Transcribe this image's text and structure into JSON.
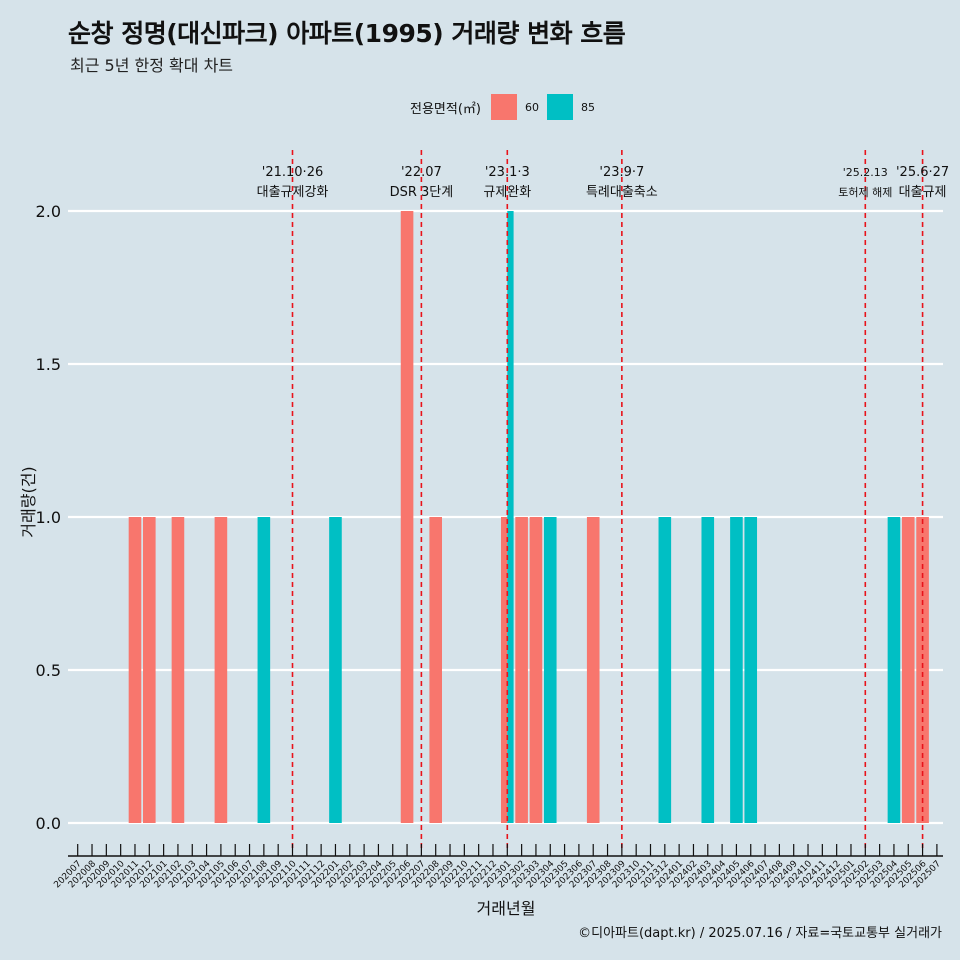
{
  "title": "순창 정명(대신파크) 아파트(1995) 거래량 변화 흐름",
  "subtitle": "최근 5년 한정 확대 차트",
  "caption": "©디아파트(dapt.kr) / 2025.07.16 / 자료=국토교통부 실거래가",
  "legend": {
    "title": "전용면적(㎡)",
    "items": [
      {
        "label": "60",
        "color": "#f8766d"
      },
      {
        "label": "85",
        "color": "#00bfc4"
      }
    ]
  },
  "chart_data": {
    "type": "bar",
    "title": "순창 정명(대신파크) 아파트(1995) 거래량 변화 흐름",
    "subtitle": "최근 5년 한정 확대 차트",
    "xlabel": "거래년월",
    "ylabel": "거래량(건)",
    "ylim": [
      0,
      2.0
    ],
    "yticks": [
      0.0,
      0.5,
      1.0,
      1.5,
      2.0
    ],
    "ytick_labels": [
      "0.0",
      "0.5",
      "1.0",
      "1.5",
      "2.0"
    ],
    "grid": true,
    "legend_position": "top",
    "categories": [
      "202007",
      "202008",
      "202009",
      "202010",
      "202011",
      "202012",
      "202101",
      "202102",
      "202103",
      "202104",
      "202105",
      "202106",
      "202107",
      "202108",
      "202109",
      "202110",
      "202111",
      "202112",
      "202201",
      "202202",
      "202203",
      "202204",
      "202205",
      "202206",
      "202207",
      "202208",
      "202209",
      "202210",
      "202211",
      "202212",
      "202301",
      "202302",
      "202303",
      "202304",
      "202305",
      "202306",
      "202307",
      "202308",
      "202309",
      "202310",
      "202311",
      "202312",
      "202401",
      "202402",
      "202403",
      "202404",
      "202405",
      "202406",
      "202407",
      "202408",
      "202409",
      "202410",
      "202411",
      "202412",
      "202501",
      "202502",
      "202503",
      "202504",
      "202505",
      "202506",
      "202507"
    ],
    "series": [
      {
        "name": "60",
        "color": "#f8766d",
        "values": [
          0,
          0,
          0,
          0,
          1,
          1,
          0,
          1,
          0,
          0,
          1,
          0,
          0,
          0,
          0,
          0,
          0,
          0,
          0,
          0,
          0,
          0,
          0,
          2,
          0,
          1,
          0,
          0,
          0,
          0,
          1,
          1,
          1,
          0,
          0,
          0,
          1,
          0,
          0,
          0,
          0,
          0,
          0,
          0,
          0,
          0,
          0,
          0,
          0,
          0,
          0,
          0,
          0,
          0,
          0,
          0,
          0,
          0,
          1,
          1,
          0
        ]
      },
      {
        "name": "85",
        "color": "#00bfc4",
        "values": [
          0,
          0,
          0,
          0,
          0,
          0,
          0,
          0,
          0,
          0,
          0,
          0,
          0,
          1,
          0,
          0,
          0,
          0,
          1,
          0,
          0,
          0,
          0,
          0,
          0,
          0,
          0,
          0,
          0,
          0,
          2,
          0,
          0,
          1,
          0,
          0,
          0,
          0,
          0,
          0,
          0,
          1,
          0,
          0,
          1,
          0,
          1,
          1,
          0,
          0,
          0,
          0,
          0,
          0,
          0,
          0,
          0,
          1,
          0,
          0,
          0
        ]
      }
    ],
    "annotations": [
      {
        "at": "202110",
        "date": "'21.10·26",
        "text": "대출규제강화"
      },
      {
        "at": "202207",
        "date": "'22.07",
        "text": "DSR 3단계"
      },
      {
        "at": "202301",
        "date": "'23.1·3",
        "text": "규제완화"
      },
      {
        "at": "202309",
        "date": "'23.9·7",
        "text": "특례대출축소"
      },
      {
        "at": "202502",
        "date": "'25.2.13",
        "text": "토허제 해제"
      },
      {
        "at": "202506",
        "date": "'25.6·27",
        "text": "대출규제"
      }
    ]
  }
}
